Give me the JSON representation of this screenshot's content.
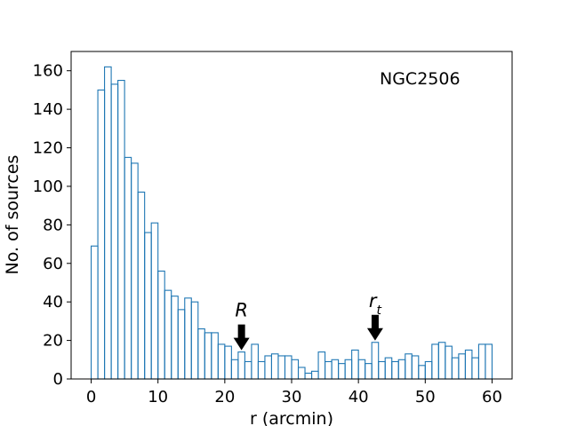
{
  "chart_data": {
    "type": "bar",
    "subtype": "histogram-step",
    "annotation_title": "NGC2506",
    "xlabel": "r (arcmin)",
    "ylabel": "No. of sources",
    "xlim": [
      -3,
      63
    ],
    "ylim": [
      0,
      170
    ],
    "xticks": [
      0,
      10,
      20,
      30,
      40,
      50,
      60
    ],
    "yticks": [
      0,
      20,
      40,
      60,
      80,
      100,
      120,
      140,
      160
    ],
    "bin_start": 0,
    "bin_width": 1,
    "counts": [
      69,
      150,
      162,
      153,
      155,
      115,
      112,
      97,
      76,
      81,
      56,
      46,
      43,
      36,
      42,
      40,
      26,
      24,
      24,
      18,
      17,
      10,
      14,
      9,
      18,
      9,
      12,
      13,
      12,
      12,
      10,
      6,
      3,
      4,
      14,
      9,
      10,
      8,
      10,
      15,
      10,
      8,
      19,
      9,
      11,
      9,
      10,
      13,
      12,
      7,
      9,
      18,
      19,
      17,
      11,
      13,
      15,
      11,
      18,
      18
    ],
    "grid": false,
    "bar_edge_color": "#1f77b4",
    "arrow_color": "#000000",
    "markers": [
      {
        "label": "R",
        "x": 22.5,
        "y": 14
      },
      {
        "label": "r",
        "subscript": "t",
        "x": 42.5,
        "y": 19
      }
    ]
  }
}
